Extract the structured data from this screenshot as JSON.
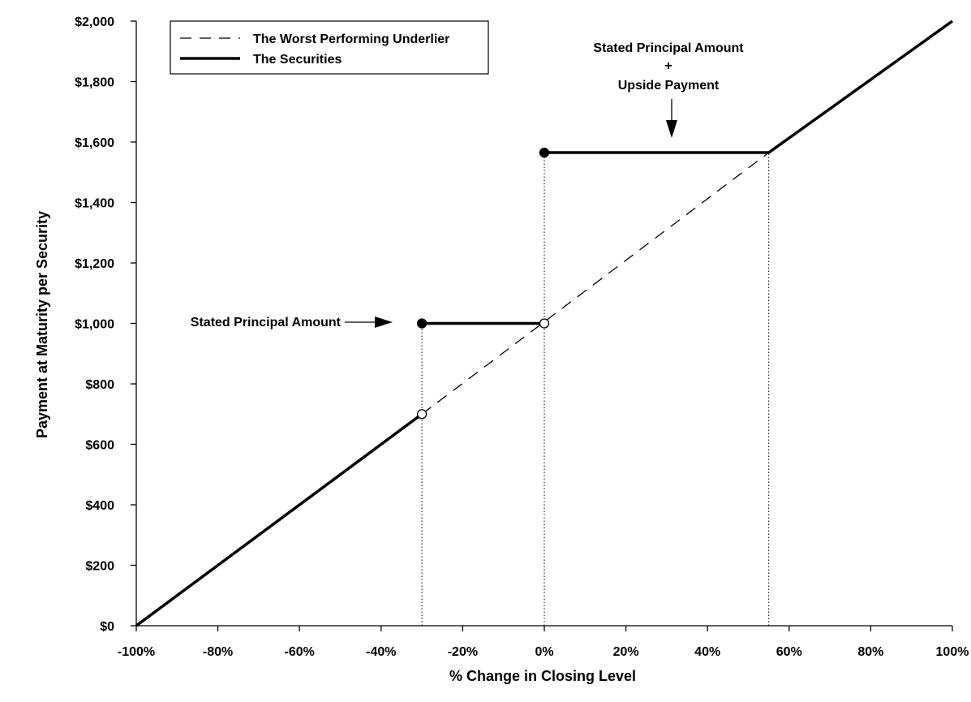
{
  "chart_data": {
    "type": "line",
    "title": "",
    "xlabel": "% Change in Closing Level",
    "ylabel": "Payment at Maturity per Security",
    "xlim": [
      -100,
      100
    ],
    "ylim": [
      0,
      2000
    ],
    "x_ticks": [
      -100,
      -80,
      -60,
      -40,
      -20,
      0,
      20,
      40,
      60,
      80,
      100
    ],
    "x_tick_labels": [
      "-100%",
      "-80%",
      "-60%",
      "-40%",
      "-20%",
      "0%",
      "20%",
      "40%",
      "60%",
      "80%",
      "100%"
    ],
    "y_ticks": [
      0,
      200,
      400,
      600,
      800,
      1000,
      1200,
      1400,
      1600,
      1800,
      2000
    ],
    "y_tick_labels": [
      "$0",
      "$200",
      "$400",
      "$600",
      "$800",
      "$1,000",
      "$1,200",
      "$1,400",
      "$1,600",
      "$1,800",
      "$2,000"
    ],
    "legend": {
      "position": "top-left",
      "entries": [
        "The Worst Performing Underlier",
        "The Securities"
      ]
    },
    "series": [
      {
        "name": "The Worst Performing Underlier",
        "style": "dashed",
        "color": "#000000",
        "points": [
          [
            -30,
            700
          ],
          [
            55,
            1565
          ]
        ]
      },
      {
        "name": "The Securities",
        "style": "solid",
        "color": "#000000",
        "segments": [
          [
            [
              -100,
              0
            ],
            [
              -30,
              700
            ]
          ],
          [
            [
              -30,
              1000
            ],
            [
              0,
              1000
            ]
          ],
          [
            [
              0,
              1565
            ],
            [
              55,
              1565
            ]
          ],
          [
            [
              55,
              1565
            ],
            [
              100,
              2000
            ]
          ]
        ]
      }
    ],
    "markers": [
      {
        "x": -30,
        "y": 1000,
        "fill": "filled"
      },
      {
        "x": -30,
        "y": 700,
        "fill": "open"
      },
      {
        "x": 0,
        "y": 1000,
        "fill": "open"
      },
      {
        "x": 0,
        "y": 1565,
        "fill": "filled"
      }
    ],
    "reference_lines": [
      {
        "x": -30,
        "from_y": 0,
        "to_y": 1000
      },
      {
        "x": 0,
        "from_y": 0,
        "to_y": 1565
      },
      {
        "x": 55,
        "from_y": 0,
        "to_y": 1565
      }
    ],
    "annotations": [
      {
        "lines": [
          "Stated Principal Amount"
        ],
        "arrow": "right",
        "target": [
          -37,
          1000
        ]
      },
      {
        "lines": [
          "Stated Principal Amount",
          "+",
          "Upside Payment"
        ],
        "arrow": "down",
        "target": [
          31,
          1580
        ]
      }
    ]
  }
}
